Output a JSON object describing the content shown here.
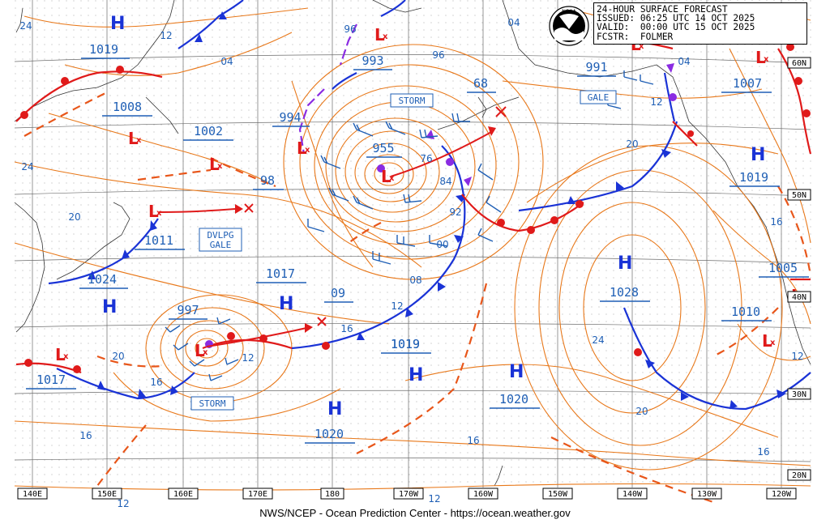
{
  "header": {
    "line1": "24-HOUR SURFACE FORECAST",
    "line2": "ISSUED: 06:25 UTC 14 OCT 2025",
    "line3": "VALID:  00:00 UTC 15 OCT 2025",
    "line4": "FCSTR:  FOLMER"
  },
  "logo_text": "NOAA",
  "footer": "NWS/NCEP - Ocean Prediction Center - https://ocean.weather.gov",
  "colors": {
    "isobar": "#e8781a",
    "label": "#1f5fb5",
    "cold_front": "#1a33d6",
    "warm_front": "#e01a1a",
    "occluded": "#8a2be2",
    "high": "#1a33d6",
    "low": "#e01a1a",
    "grid": "#555555"
  },
  "longitudes": [
    "140E",
    "150E",
    "160E",
    "170E",
    "180",
    "170W",
    "160W",
    "150W",
    "140W",
    "130W",
    "120W"
  ],
  "latitudes": [
    "60N",
    "50N",
    "40N",
    "30N",
    "20N"
  ],
  "highs": [
    {
      "label": "H",
      "value": "1019"
    },
    {
      "label": "H",
      "value": "1024"
    },
    {
      "label": "H",
      "value": ""
    },
    {
      "label": "H",
      "value": "1019"
    },
    {
      "label": "H",
      "value": "1020"
    },
    {
      "label": "H",
      "value": "1020"
    },
    {
      "label": "H",
      "value": "1028"
    },
    {
      "label": "H",
      "value": "1019"
    }
  ],
  "lows": [
    {
      "label": "L",
      "value": "1008"
    },
    {
      "label": "L",
      "value": "1002"
    },
    {
      "label": "L",
      "value": "1011"
    },
    {
      "label": "L",
      "value": "994"
    },
    {
      "label": "L",
      "value": "993"
    },
    {
      "label": "L",
      "value": "955"
    },
    {
      "label": "L",
      "value": "997"
    },
    {
      "label": "L",
      "value": "1017"
    },
    {
      "label": "L",
      "value": "991"
    },
    {
      "label": "L",
      "value": "1007"
    },
    {
      "label": "L",
      "value": "1005"
    },
    {
      "label": "L",
      "value": "1010"
    }
  ],
  "warnings": [
    "STORM",
    "GALE",
    "DVLPG\nGALE",
    "STORM"
  ],
  "pressure_labels": [
    "1017",
    "98",
    "68",
    "09",
    "1019"
  ],
  "isobar_labels": [
    "24",
    "12",
    "04",
    "96",
    "96",
    "04",
    "24",
    "20",
    "20",
    "16",
    "12",
    "20",
    "16",
    "16",
    "12",
    "76",
    "84",
    "92",
    "00",
    "08",
    "12",
    "16",
    "24",
    "20",
    "16",
    "16",
    "12",
    "12",
    "12",
    "04"
  ]
}
